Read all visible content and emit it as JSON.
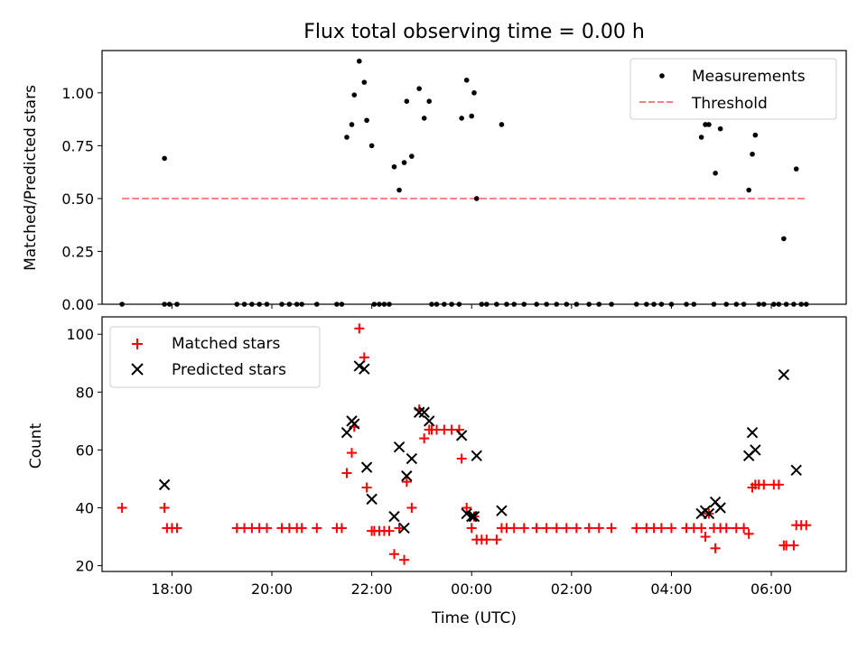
{
  "title": "Flux total observing time = 0.00 h",
  "chart_data": [
    {
      "type": "scatter",
      "ylabel": "Matched/Predicted stars",
      "ylim": [
        0,
        1.2
      ],
      "y_ticks": [
        0.0,
        0.25,
        0.5,
        0.75,
        1.0
      ],
      "y_tick_labels": [
        "0.00",
        "0.25",
        "0.50",
        "0.75",
        "1.00"
      ],
      "x_tick_hours": [
        18,
        20,
        22,
        24,
        26,
        28,
        30
      ],
      "legend": {
        "placement": "top-right",
        "entries": [
          {
            "label": "Measurements",
            "marker": "dot",
            "color": "#000000"
          },
          {
            "label": "Threshold",
            "marker": "dashed-line",
            "color": "#ff7f7f"
          }
        ]
      },
      "threshold": {
        "value": 0.5,
        "x_range": [
          17.0,
          30.7
        ],
        "color": "#ff7f7f"
      },
      "measurements": [
        [
          17.0,
          0
        ],
        [
          17.85,
          0.69
        ],
        [
          17.85,
          0
        ],
        [
          17.95,
          0
        ],
        [
          18.1,
          0
        ],
        [
          19.3,
          0
        ],
        [
          19.45,
          0
        ],
        [
          19.6,
          0
        ],
        [
          19.75,
          0
        ],
        [
          19.9,
          0
        ],
        [
          20.2,
          0
        ],
        [
          20.35,
          0
        ],
        [
          20.5,
          0
        ],
        [
          20.6,
          0
        ],
        [
          20.9,
          0
        ],
        [
          21.3,
          0
        ],
        [
          21.4,
          0
        ],
        [
          21.5,
          0.79
        ],
        [
          21.6,
          0.85
        ],
        [
          21.65,
          0.99
        ],
        [
          21.75,
          1.15
        ],
        [
          21.85,
          1.05
        ],
        [
          21.9,
          0.87
        ],
        [
          22.0,
          0.75
        ],
        [
          22.05,
          0
        ],
        [
          22.15,
          0
        ],
        [
          22.25,
          0
        ],
        [
          22.35,
          0
        ],
        [
          22.45,
          0.65
        ],
        [
          22.55,
          0.54
        ],
        [
          22.65,
          0.67
        ],
        [
          22.7,
          0.96
        ],
        [
          22.8,
          0.7
        ],
        [
          22.95,
          1.02
        ],
        [
          23.05,
          0.88
        ],
        [
          23.15,
          0.96
        ],
        [
          23.2,
          0
        ],
        [
          23.3,
          0
        ],
        [
          23.45,
          0
        ],
        [
          23.6,
          0
        ],
        [
          23.75,
          0
        ],
        [
          23.8,
          0.88
        ],
        [
          23.9,
          1.06
        ],
        [
          24.0,
          0.89
        ],
        [
          24.05,
          1.0
        ],
        [
          24.1,
          0.5
        ],
        [
          24.2,
          0
        ],
        [
          24.3,
          0
        ],
        [
          24.5,
          0
        ],
        [
          24.6,
          0.85
        ],
        [
          24.7,
          0
        ],
        [
          24.85,
          0
        ],
        [
          25.05,
          0
        ],
        [
          25.3,
          0
        ],
        [
          25.5,
          0
        ],
        [
          25.7,
          0
        ],
        [
          25.9,
          0
        ],
        [
          26.1,
          0
        ],
        [
          26.35,
          0
        ],
        [
          26.55,
          0
        ],
        [
          26.8,
          0
        ],
        [
          27.3,
          0
        ],
        [
          27.5,
          0
        ],
        [
          27.65,
          0
        ],
        [
          27.8,
          0
        ],
        [
          28.0,
          0
        ],
        [
          28.3,
          0
        ],
        [
          28.45,
          0
        ],
        [
          28.6,
          0.79
        ],
        [
          28.68,
          0.85
        ],
        [
          28.75,
          0.85
        ],
        [
          28.88,
          0.62
        ],
        [
          28.98,
          0.83
        ],
        [
          28.85,
          0
        ],
        [
          29.1,
          0
        ],
        [
          29.3,
          0
        ],
        [
          29.45,
          0
        ],
        [
          29.55,
          0.54
        ],
        [
          29.62,
          0.71
        ],
        [
          29.68,
          0.8
        ],
        [
          29.75,
          0
        ],
        [
          29.85,
          0
        ],
        [
          30.05,
          0
        ],
        [
          30.15,
          0
        ],
        [
          30.25,
          0.31
        ],
        [
          30.5,
          0.64
        ],
        [
          30.3,
          0
        ],
        [
          30.45,
          0
        ],
        [
          30.6,
          0
        ],
        [
          30.7,
          0
        ]
      ]
    },
    {
      "type": "scatter",
      "xlabel": "Time (UTC)",
      "ylabel": "Count",
      "ylim": [
        18,
        106
      ],
      "y_ticks": [
        20,
        40,
        60,
        80,
        100
      ],
      "x_tick_hours": [
        18,
        20,
        22,
        24,
        26,
        28,
        30
      ],
      "x_tick_labels": [
        "18:00",
        "20:00",
        "22:00",
        "00:00",
        "02:00",
        "04:00",
        "06:00"
      ],
      "legend": {
        "placement": "top-left",
        "entries": [
          {
            "label": "Matched stars",
            "marker": "plus",
            "color": "#ff0000"
          },
          {
            "label": "Predicted stars",
            "marker": "x",
            "color": "#000000"
          }
        ]
      },
      "series": [
        {
          "name": "Matched stars",
          "color": "#ff0000",
          "marker": "plus",
          "points": [
            [
              17.0,
              40
            ],
            [
              17.85,
              40
            ],
            [
              17.9,
              33
            ],
            [
              18.0,
              33
            ],
            [
              18.1,
              33
            ],
            [
              19.3,
              33
            ],
            [
              19.45,
              33
            ],
            [
              19.6,
              33
            ],
            [
              19.75,
              33
            ],
            [
              19.9,
              33
            ],
            [
              20.2,
              33
            ],
            [
              20.35,
              33
            ],
            [
              20.5,
              33
            ],
            [
              20.6,
              33
            ],
            [
              20.9,
              33
            ],
            [
              21.3,
              33
            ],
            [
              21.4,
              33
            ],
            [
              21.5,
              52
            ],
            [
              21.6,
              59
            ],
            [
              21.65,
              68
            ],
            [
              21.75,
              102
            ],
            [
              21.85,
              92
            ],
            [
              21.9,
              47
            ],
            [
              22.0,
              32
            ],
            [
              22.05,
              32
            ],
            [
              22.15,
              32
            ],
            [
              22.25,
              32
            ],
            [
              22.35,
              32
            ],
            [
              22.45,
              24
            ],
            [
              22.55,
              33
            ],
            [
              22.65,
              22
            ],
            [
              22.7,
              49
            ],
            [
              22.8,
              40
            ],
            [
              22.95,
              74
            ],
            [
              23.05,
              64
            ],
            [
              23.15,
              67
            ],
            [
              23.2,
              67
            ],
            [
              23.3,
              67
            ],
            [
              23.45,
              67
            ],
            [
              23.6,
              67
            ],
            [
              23.75,
              67
            ],
            [
              23.8,
              57
            ],
            [
              23.9,
              40
            ],
            [
              24.0,
              33
            ],
            [
              24.05,
              37
            ],
            [
              24.1,
              29
            ],
            [
              24.2,
              29
            ],
            [
              24.3,
              29
            ],
            [
              24.5,
              29
            ],
            [
              24.6,
              33
            ],
            [
              24.7,
              33
            ],
            [
              24.85,
              33
            ],
            [
              25.05,
              33
            ],
            [
              25.3,
              33
            ],
            [
              25.5,
              33
            ],
            [
              25.7,
              33
            ],
            [
              25.9,
              33
            ],
            [
              26.1,
              33
            ],
            [
              26.35,
              33
            ],
            [
              26.55,
              33
            ],
            [
              26.8,
              33
            ],
            [
              27.3,
              33
            ],
            [
              27.5,
              33
            ],
            [
              27.65,
              33
            ],
            [
              27.8,
              33
            ],
            [
              28.0,
              33
            ],
            [
              28.3,
              33
            ],
            [
              28.45,
              33
            ],
            [
              28.6,
              33
            ],
            [
              28.68,
              30
            ],
            [
              28.75,
              38
            ],
            [
              28.88,
              26
            ],
            [
              28.98,
              33
            ],
            [
              28.85,
              33
            ],
            [
              29.1,
              33
            ],
            [
              29.3,
              33
            ],
            [
              29.45,
              33
            ],
            [
              29.55,
              31
            ],
            [
              29.62,
              47
            ],
            [
              29.68,
              48
            ],
            [
              29.75,
              48
            ],
            [
              29.85,
              48
            ],
            [
              30.05,
              48
            ],
            [
              30.15,
              48
            ],
            [
              30.25,
              27
            ],
            [
              30.5,
              34
            ],
            [
              30.3,
              27
            ],
            [
              30.45,
              27
            ],
            [
              30.6,
              34
            ],
            [
              30.7,
              34
            ]
          ]
        },
        {
          "name": "Predicted stars",
          "color": "#000000",
          "marker": "x",
          "points": [
            [
              17.85,
              48
            ],
            [
              21.5,
              66
            ],
            [
              21.6,
              70
            ],
            [
              21.65,
              69
            ],
            [
              21.75,
              89
            ],
            [
              21.85,
              88
            ],
            [
              21.9,
              54
            ],
            [
              22.0,
              43
            ],
            [
              22.45,
              37
            ],
            [
              22.55,
              61
            ],
            [
              22.65,
              33
            ],
            [
              22.7,
              51
            ],
            [
              22.8,
              57
            ],
            [
              22.95,
              73
            ],
            [
              23.05,
              73
            ],
            [
              23.15,
              70
            ],
            [
              23.8,
              65
            ],
            [
              23.9,
              38
            ],
            [
              24.0,
              37
            ],
            [
              24.05,
              37
            ],
            [
              24.1,
              58
            ],
            [
              24.6,
              39
            ],
            [
              28.6,
              38
            ],
            [
              28.68,
              39
            ],
            [
              28.75,
              38
            ],
            [
              28.88,
              42
            ],
            [
              28.98,
              40
            ],
            [
              29.55,
              58
            ],
            [
              29.62,
              66
            ],
            [
              29.68,
              60
            ],
            [
              30.25,
              86
            ],
            [
              30.5,
              53
            ]
          ]
        }
      ]
    }
  ]
}
